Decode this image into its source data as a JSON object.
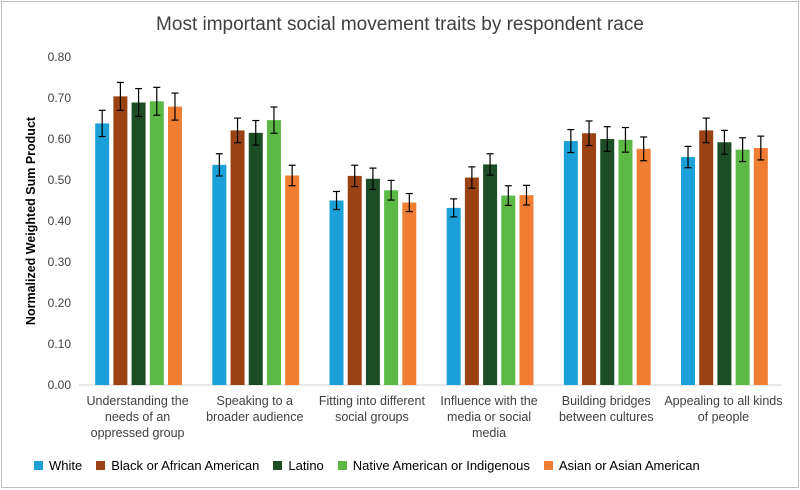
{
  "chart_data": {
    "type": "bar",
    "title": "Most important social movement traits by respondent race",
    "ylabel": "Normalized Weighted Sum Product",
    "xlabel": "",
    "ylim": [
      0,
      0.8
    ],
    "yticks": [
      "0.00",
      "0.10",
      "0.20",
      "0.30",
      "0.40",
      "0.50",
      "0.60",
      "0.70",
      "0.80"
    ],
    "grid": false,
    "legend_position": "bottom",
    "error_bars": true,
    "categories": [
      [
        "Understanding the",
        "needs of an",
        "oppressed group"
      ],
      [
        "Speaking to a",
        "broader audience"
      ],
      [
        "Fitting into different",
        "social groups"
      ],
      [
        "Influence with the",
        "media or social",
        "media"
      ],
      [
        "Building bridges",
        "between cultures"
      ],
      [
        "Appealing to all kinds",
        "of people"
      ]
    ],
    "series": [
      {
        "name": "White",
        "color": "#1ba1d8",
        "values": [
          0.638,
          0.537,
          0.45,
          0.432,
          0.595,
          0.556
        ],
        "errors": [
          0.032,
          0.027,
          0.022,
          0.022,
          0.028,
          0.026
        ]
      },
      {
        "name": "Black or African American",
        "color": "#9a4214",
        "values": [
          0.704,
          0.621,
          0.51,
          0.506,
          0.614,
          0.621
        ],
        "errors": [
          0.034,
          0.03,
          0.026,
          0.026,
          0.03,
          0.03
        ]
      },
      {
        "name": "Latino",
        "color": "#1d4d25",
        "values": [
          0.689,
          0.615,
          0.503,
          0.538,
          0.6,
          0.592
        ],
        "errors": [
          0.034,
          0.03,
          0.026,
          0.026,
          0.03,
          0.029
        ]
      },
      {
        "name": "Native American or Indigenous",
        "color": "#5cb946",
        "values": [
          0.692,
          0.646,
          0.475,
          0.462,
          0.598,
          0.574
        ],
        "errors": [
          0.034,
          0.032,
          0.024,
          0.024,
          0.03,
          0.029
        ]
      },
      {
        "name": "Asian or Asian American",
        "color": "#ef7d32",
        "values": [
          0.679,
          0.511,
          0.445,
          0.463,
          0.576,
          0.578
        ],
        "errors": [
          0.033,
          0.025,
          0.022,
          0.024,
          0.029,
          0.029
        ]
      }
    ]
  }
}
